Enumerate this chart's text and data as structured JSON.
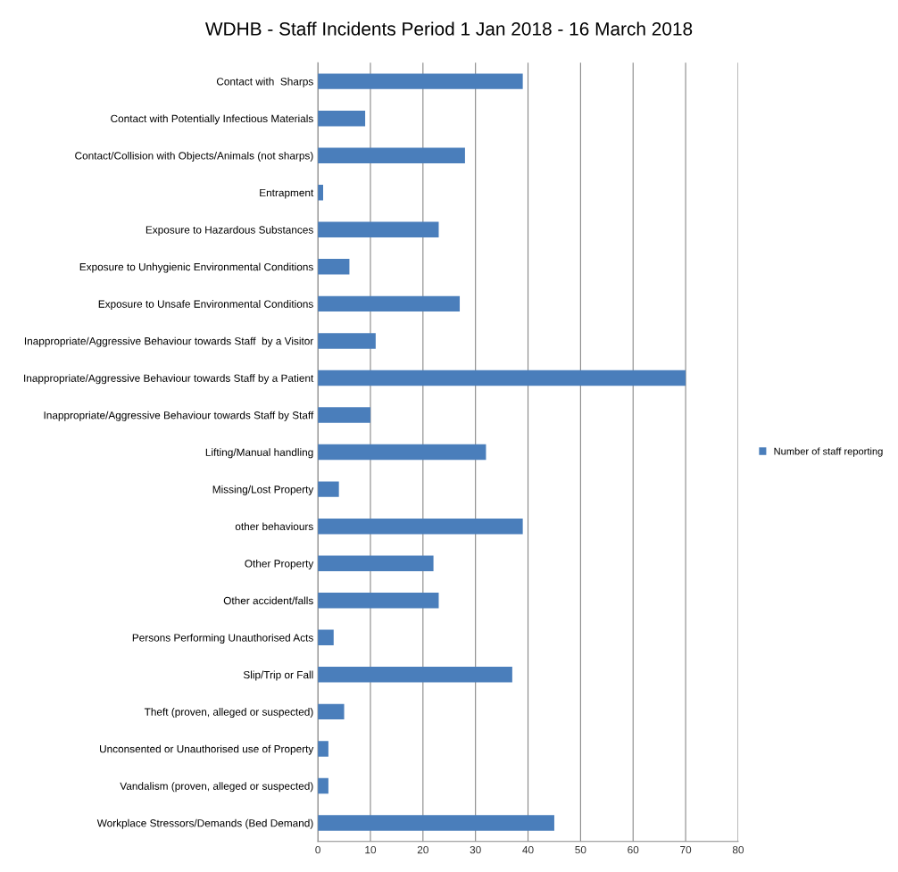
{
  "chart_data": {
    "type": "bar",
    "orientation": "horizontal",
    "title": "WDHB - Staff Incidents Period 1 Jan 2018 - 16 March 2018",
    "categories": [
      "Contact with  Sharps",
      "Contact with Potentially Infectious Materials",
      "Contact/Collision with Objects/Animals (not sharps)",
      "Entrapment",
      "Exposure to Hazardous Substances",
      "Exposure to Unhygienic Environmental Conditions",
      "Exposure to Unsafe Environmental Conditions",
      "Inappropriate/Aggressive Behaviour towards Staff  by a Visitor",
      "Inappropriate/Aggressive Behaviour towards Staff by a Patient",
      "Inappropriate/Aggressive Behaviour towards Staff by Staff",
      "Lifting/Manual handling",
      "Missing/Lost Property",
      "other behaviours",
      "Other Property",
      "Other accident/falls",
      "Persons Performing Unauthorised Acts",
      "Slip/Trip or Fall",
      "Theft (proven, alleged or suspected)",
      "Unconsented or Unauthorised use of Property",
      "Vandalism (proven, alleged or suspected)",
      "Workplace Stressors/Demands (Bed Demand)"
    ],
    "series": [
      {
        "name": "Number of staff reporting",
        "color": "#4a7ebb",
        "values": [
          39,
          9,
          28,
          1,
          23,
          6,
          27,
          11,
          70,
          10,
          32,
          4,
          39,
          22,
          23,
          3,
          37,
          5,
          2,
          2,
          45
        ]
      }
    ],
    "xlim": [
      0,
      80
    ],
    "xticks": [
      0,
      10,
      20,
      30,
      40,
      50,
      60,
      70,
      80
    ],
    "grid": "x",
    "legend": "right"
  }
}
